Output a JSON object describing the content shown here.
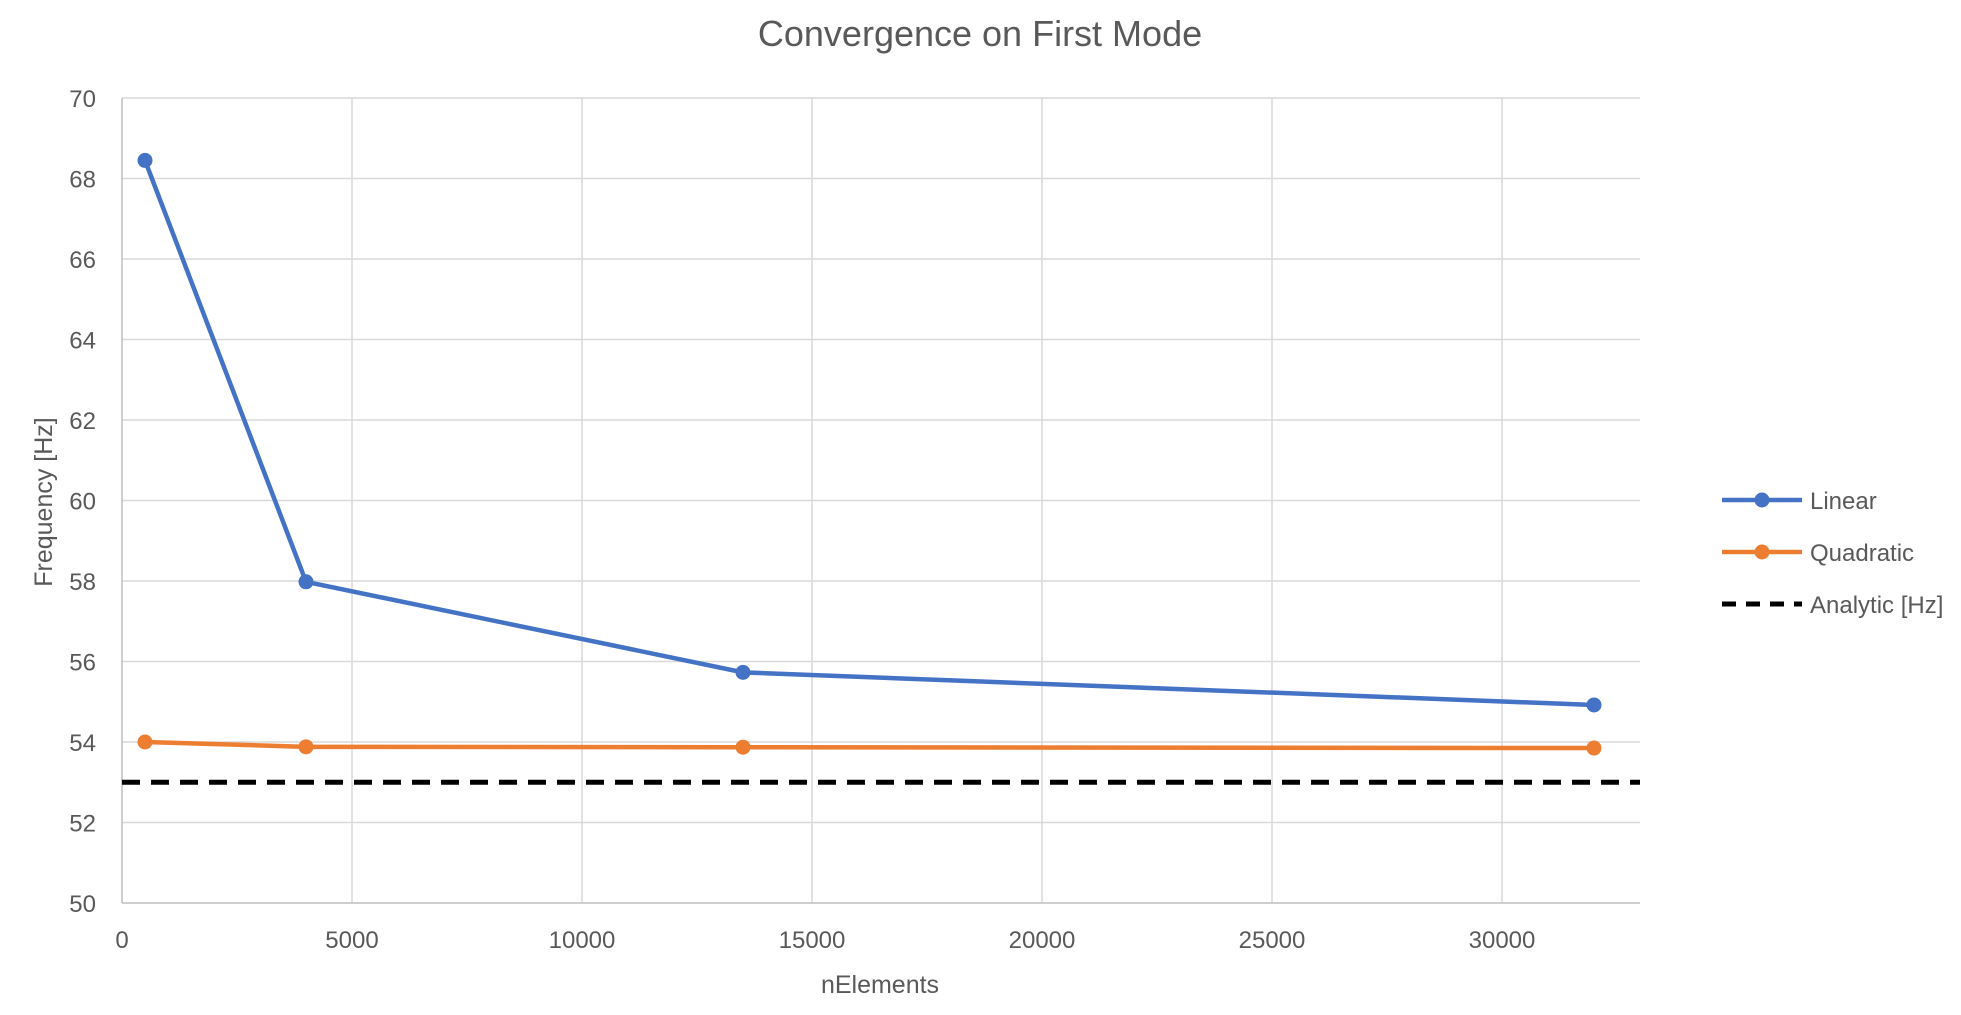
{
  "chart_data": {
    "type": "line",
    "title": "Convergence on First Mode",
    "xlabel": "nElements",
    "ylabel": "Frequency [Hz]",
    "xlim": [
      0,
      33000
    ],
    "ylim": [
      50,
      70
    ],
    "xticks": [
      0,
      5000,
      10000,
      15000,
      20000,
      25000,
      30000
    ],
    "yticks": [
      50,
      52,
      54,
      56,
      58,
      60,
      62,
      64,
      66,
      68,
      70
    ],
    "grid": true,
    "legend_position": "right",
    "series": [
      {
        "name": "Linear",
        "color": "#4472C4",
        "style": "solid-markers",
        "points": [
          [
            500,
            68.45
          ],
          [
            4000,
            57.98
          ],
          [
            13500,
            55.73
          ],
          [
            32000,
            54.92
          ]
        ]
      },
      {
        "name": "Quadratic",
        "color": "#ED7D31",
        "style": "solid-markers",
        "points": [
          [
            500,
            54.0
          ],
          [
            4000,
            53.88
          ],
          [
            13500,
            53.87
          ],
          [
            32000,
            53.85
          ]
        ]
      },
      {
        "name": "Analytic [Hz]",
        "color": "#000000",
        "style": "dashed",
        "points": [
          [
            0,
            53.0
          ],
          [
            33000,
            53.0
          ]
        ]
      }
    ]
  }
}
